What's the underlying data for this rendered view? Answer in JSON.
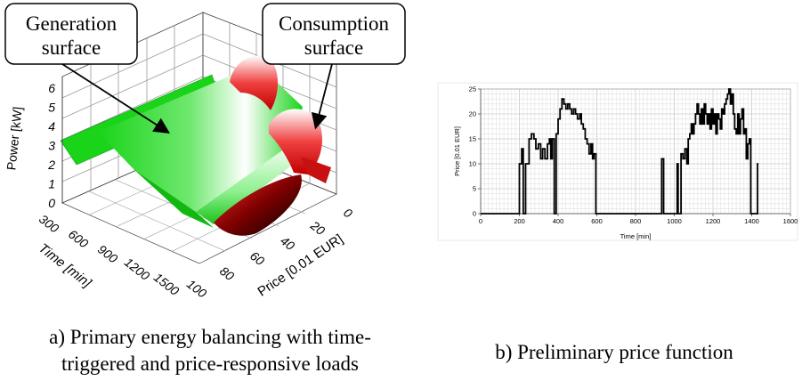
{
  "captions": {
    "a_line1": "a) Primary energy balancing with time-",
    "a_line2": "triggered and price-responsive loads",
    "b": "b) Preliminary price function"
  },
  "chart_data": [
    {
      "type": "surface",
      "title": "",
      "callouts": [
        "Generation surface",
        "Consumption surface"
      ],
      "zlabel": "Power [kW]",
      "xlabel": "Time [min]",
      "ylabel": "Price [0.01 EUR]",
      "z_ticks": [
        "0",
        "1",
        "2",
        "3",
        "4",
        "5",
        "6"
      ],
      "time_ticks": [
        "300",
        "600",
        "900",
        "1200",
        "1500"
      ],
      "price_ticks": [
        "0",
        "20",
        "40",
        "60",
        "80",
        "100"
      ],
      "colors": {
        "generation": "#19d419",
        "consumption": "#e01010"
      }
    },
    {
      "type": "line",
      "title": "",
      "xlabel": "Time [min]",
      "ylabel": "Price [0.01 EUR]",
      "xlim": [
        0,
        1600
      ],
      "ylim": [
        0,
        25
      ],
      "x_ticks": [
        0,
        200,
        400,
        600,
        800,
        1000,
        1200,
        1400,
        1600
      ],
      "y_ticks": [
        0,
        5,
        10,
        15,
        20,
        25
      ],
      "grid": true,
      "series": [
        {
          "points": [
            [
              0,
              0
            ],
            [
              200,
              0
            ],
            [
              200,
              10
            ],
            [
              212,
              10
            ],
            [
              212,
              13
            ],
            [
              220,
              13
            ],
            [
              220,
              0
            ],
            [
              232,
              0
            ],
            [
              232,
              10
            ],
            [
              250,
              10
            ],
            [
              250,
              15
            ],
            [
              262,
              15
            ],
            [
              262,
              16
            ],
            [
              275,
              16
            ],
            [
              275,
              15
            ],
            [
              285,
              15
            ],
            [
              285,
              13
            ],
            [
              298,
              13
            ],
            [
              298,
              14
            ],
            [
              310,
              14
            ],
            [
              310,
              11
            ],
            [
              320,
              11
            ],
            [
              320,
              13
            ],
            [
              332,
              13
            ],
            [
              332,
              11
            ],
            [
              345,
              11
            ],
            [
              345,
              14
            ],
            [
              355,
              14
            ],
            [
              355,
              15
            ],
            [
              362,
              15
            ],
            [
              362,
              11
            ],
            [
              370,
              11
            ],
            [
              370,
              15
            ],
            [
              380,
              15
            ],
            [
              380,
              0
            ],
            [
              390,
              0
            ],
            [
              390,
              16
            ],
            [
              400,
              16
            ],
            [
              400,
              19
            ],
            [
              410,
              19
            ],
            [
              410,
              21
            ],
            [
              420,
              21
            ],
            [
              420,
              23
            ],
            [
              430,
              23
            ],
            [
              430,
              22
            ],
            [
              440,
              22
            ],
            [
              440,
              21
            ],
            [
              450,
              21
            ],
            [
              450,
              22
            ],
            [
              460,
              22
            ],
            [
              460,
              21
            ],
            [
              470,
              21
            ],
            [
              470,
              20
            ],
            [
              480,
              20
            ],
            [
              480,
              21
            ],
            [
              490,
              21
            ],
            [
              490,
              20
            ],
            [
              500,
              20
            ],
            [
              500,
              19
            ],
            [
              512,
              19
            ],
            [
              512,
              20
            ],
            [
              520,
              20
            ],
            [
              520,
              18
            ],
            [
              530,
              18
            ],
            [
              530,
              17
            ],
            [
              540,
              17
            ],
            [
              540,
              15
            ],
            [
              550,
              15
            ],
            [
              550,
              14
            ],
            [
              560,
              14
            ],
            [
              560,
              12
            ],
            [
              570,
              12
            ],
            [
              570,
              14
            ],
            [
              578,
              14
            ],
            [
              578,
              11
            ],
            [
              585,
              11
            ],
            [
              585,
              12
            ],
            [
              595,
              12
            ],
            [
              595,
              0
            ],
            [
              935,
              0
            ],
            [
              935,
              11
            ],
            [
              945,
              11
            ],
            [
              945,
              0
            ],
            [
              1015,
              0
            ],
            [
              1015,
              10
            ],
            [
              1020,
              10
            ],
            [
              1020,
              0
            ],
            [
              1035,
              0
            ],
            [
              1035,
              12
            ],
            [
              1045,
              12
            ],
            [
              1045,
              11
            ],
            [
              1055,
              11
            ],
            [
              1055,
              13
            ],
            [
              1065,
              13
            ],
            [
              1065,
              10
            ],
            [
              1072,
              10
            ],
            [
              1072,
              15
            ],
            [
              1080,
              15
            ],
            [
              1080,
              16
            ],
            [
              1088,
              16
            ],
            [
              1088,
              18
            ],
            [
              1095,
              18
            ],
            [
              1095,
              16
            ],
            [
              1102,
              16
            ],
            [
              1102,
              18
            ],
            [
              1110,
              18
            ],
            [
              1110,
              20
            ],
            [
              1118,
              20
            ],
            [
              1118,
              22
            ],
            [
              1125,
              22
            ],
            [
              1125,
              20
            ],
            [
              1132,
              20
            ],
            [
              1132,
              18
            ],
            [
              1140,
              18
            ],
            [
              1140,
              21
            ],
            [
              1148,
              21
            ],
            [
              1148,
              18
            ],
            [
              1155,
              18
            ],
            [
              1155,
              22
            ],
            [
              1162,
              22
            ],
            [
              1162,
              20
            ],
            [
              1170,
              20
            ],
            [
              1170,
              18
            ],
            [
              1178,
              18
            ],
            [
              1178,
              20
            ],
            [
              1185,
              20
            ],
            [
              1185,
              17
            ],
            [
              1192,
              17
            ],
            [
              1192,
              21
            ],
            [
              1200,
              21
            ],
            [
              1200,
              18
            ],
            [
              1208,
              18
            ],
            [
              1208,
              20
            ],
            [
              1215,
              20
            ],
            [
              1215,
              16
            ],
            [
              1222,
              16
            ],
            [
              1222,
              20
            ],
            [
              1230,
              20
            ],
            [
              1230,
              19
            ],
            [
              1238,
              19
            ],
            [
              1238,
              17
            ],
            [
              1245,
              17
            ],
            [
              1245,
              21
            ],
            [
              1252,
              21
            ],
            [
              1252,
              20
            ],
            [
              1260,
              20
            ],
            [
              1260,
              22
            ],
            [
              1268,
              22
            ],
            [
              1268,
              23
            ],
            [
              1275,
              23
            ],
            [
              1275,
              24
            ],
            [
              1282,
              24
            ],
            [
              1282,
              25
            ],
            [
              1290,
              25
            ],
            [
              1290,
              22
            ],
            [
              1298,
              22
            ],
            [
              1298,
              24
            ],
            [
              1305,
              24
            ],
            [
              1305,
              20
            ],
            [
              1312,
              20
            ],
            [
              1312,
              17
            ],
            [
              1320,
              17
            ],
            [
              1320,
              16
            ],
            [
              1328,
              16
            ],
            [
              1328,
              20
            ],
            [
              1335,
              20
            ],
            [
              1335,
              16
            ],
            [
              1342,
              16
            ],
            [
              1342,
              19
            ],
            [
              1350,
              19
            ],
            [
              1350,
              21
            ],
            [
              1358,
              21
            ],
            [
              1358,
              16
            ],
            [
              1365,
              16
            ],
            [
              1365,
              17
            ],
            [
              1372,
              17
            ],
            [
              1372,
              11
            ],
            [
              1380,
              11
            ],
            [
              1380,
              14
            ],
            [
              1388,
              14
            ],
            [
              1388,
              15
            ],
            [
              1395,
              15
            ],
            [
              1395,
              0
            ],
            [
              1430,
              0
            ],
            [
              1430,
              10
            ],
            [
              1435,
              10
            ]
          ]
        }
      ]
    }
  ]
}
